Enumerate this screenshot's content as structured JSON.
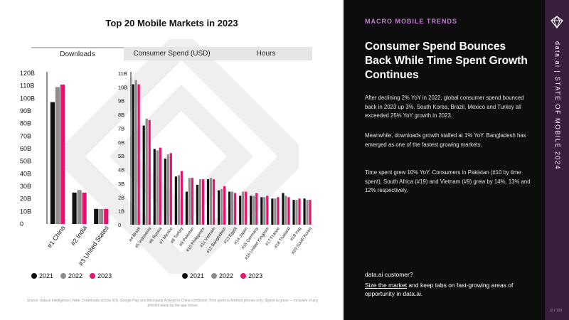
{
  "chart_title": "Top 20 Mobile Markets in 2023",
  "tabs": [
    {
      "label": "Downloads",
      "active": true
    },
    {
      "label": "Consumer Spend (USD)",
      "active": false
    },
    {
      "label": "Hours",
      "active": false
    }
  ],
  "colors": {
    "y2021": "#111111",
    "y2022": "#8c8c8c",
    "y2023": "#e6126e",
    "dark_panel": "#0d0d0d",
    "strip": "#3a1e3d",
    "kicker": "#c77dd6"
  },
  "legend": [
    {
      "label": "2021",
      "color": "#111111"
    },
    {
      "label": "2022",
      "color": "#8c8c8c"
    },
    {
      "label": "2023",
      "color": "#e6126e"
    }
  ],
  "chart_data": [
    {
      "type": "bar",
      "title": "Downloads",
      "categories": [
        "#1 China",
        "#2 India",
        "#3 United States"
      ],
      "series": [
        {
          "name": "2021",
          "values": [
            97,
            25,
            12
          ]
        },
        {
          "name": "2022",
          "values": [
            109,
            27,
            12
          ]
        },
        {
          "name": "2023",
          "values": [
            111,
            25,
            12
          ]
        }
      ],
      "ytick_labels": [
        "0",
        "10B",
        "20B",
        "30B",
        "40B",
        "50B",
        "60B",
        "70B",
        "80B",
        "90B",
        "100B",
        "110B",
        "120B"
      ],
      "ylim": [
        0,
        120
      ],
      "unit": "B"
    },
    {
      "type": "bar",
      "title": "Downloads",
      "categories": [
        "#4 Brazil",
        "#5 Indonesia",
        "#6 Russia",
        "#7 Mexico",
        "#8 Turkey",
        "#9 Pakistan",
        "#10 Philippines",
        "#11 Vietnam",
        "#12 Bangladesh",
        "#13 Egypt",
        "#14 Japan",
        "#15 Germany",
        "#16 United Kingdom",
        "#17 France",
        "#18 Thailand",
        "#19 Iraq",
        "#20 South Korea"
      ],
      "series": [
        {
          "name": "2021",
          "values": [
            10.2,
            7.2,
            5.5,
            4.8,
            3.5,
            2.4,
            2.9,
            3.3,
            2.5,
            2.4,
            2.1,
            2.1,
            2.0,
            1.9,
            2.3,
            1.8,
            1.9
          ]
        },
        {
          "name": "2022",
          "values": [
            10.5,
            7.7,
            5.4,
            5.1,
            3.6,
            3.4,
            3.3,
            3.4,
            2.6,
            2.4,
            2.4,
            2.1,
            2.0,
            1.9,
            2.1,
            1.8,
            1.8
          ]
        },
        {
          "name": "2023",
          "values": [
            10.2,
            7.6,
            5.6,
            5.2,
            3.9,
            3.4,
            3.3,
            3.3,
            2.8,
            2.3,
            2.4,
            2.3,
            2.1,
            2.0,
            2.0,
            1.9,
            1.8
          ]
        }
      ],
      "ytick_labels": [
        "0",
        "1B",
        "2B",
        "3B",
        "4B",
        "5B",
        "6B",
        "7B",
        "8B",
        "9B",
        "10B",
        "11B"
      ],
      "ylim": [
        0,
        11
      ],
      "unit": "B"
    }
  ],
  "source": "Source: data.ai Intelligence | Note: Downloads across iOS, Google Play and third-party Android in China combined; Time spent is Android phones only; Spend is gross — inclusive of any percent taken by the app stores",
  "right_panel": {
    "kicker": "MACRO MOBILE TRENDS",
    "headline": "Consumer Spend Bounces Back While Time Spent Growth Continues",
    "paragraphs": [
      "After declining 2% YoY in 2022, global consumer spend bounced back in 2023 up 3%. South Korea, Brazil, Mexico and Turkey all exceeded 25% YoY growth in 2023.",
      "Meanwhile, downloads growth stalled at 1% YoY. Bangladesh has emerged as one of the fastest growing markets.",
      "Time spent grew 10% YoY. Consumers in Pakistan (#10 by time spent), South Africa  (#19) and Vietnam (#9) grew by 14%, 13% and 12% respectively."
    ],
    "cta_question": "data.ai customer?",
    "cta_link": "Size the market",
    "cta_rest": " and keep tabs on fast-growing areas of opportunity in data.ai."
  },
  "strip_text": "data.ai | STATE OF MOBILE 2024",
  "page_number": "13 / 100"
}
